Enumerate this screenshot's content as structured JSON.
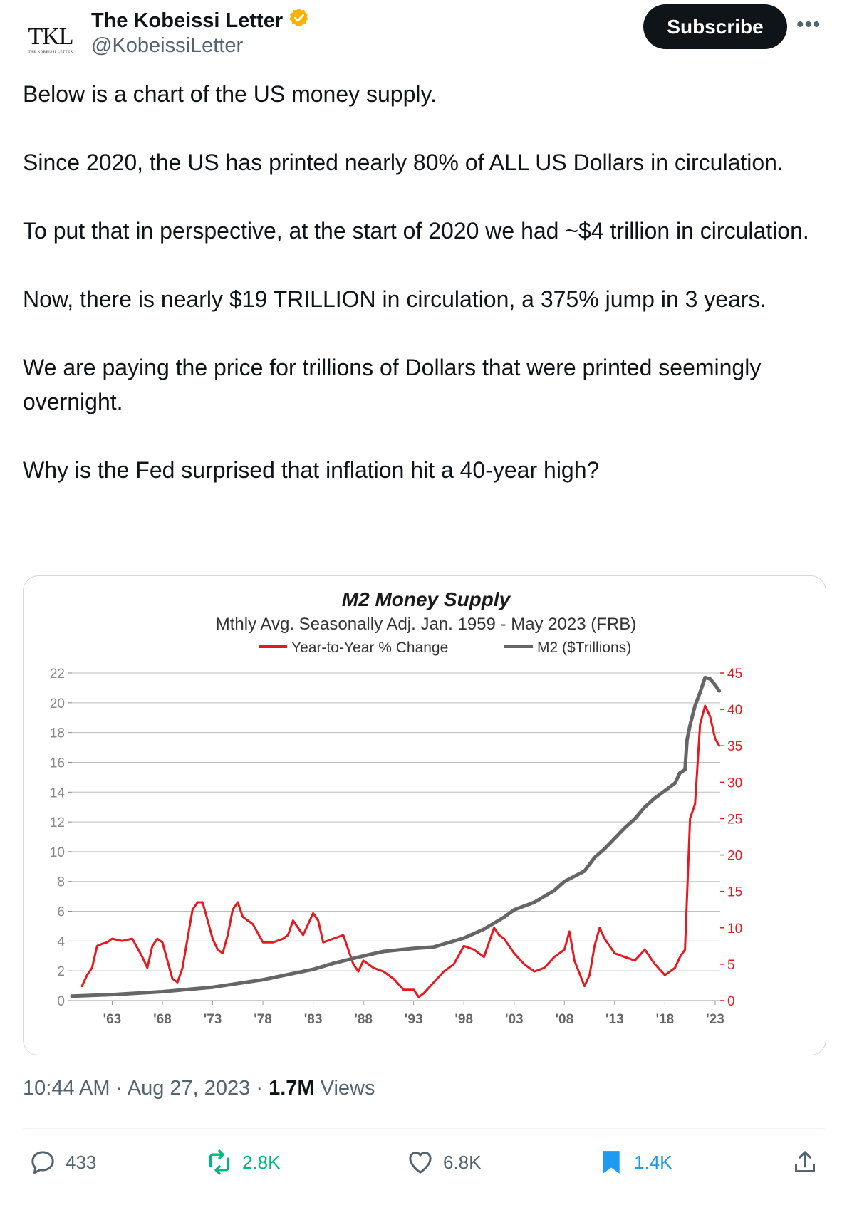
{
  "author": {
    "name": "The Kobeissi Letter",
    "handle": "@KobeissiLetter",
    "avatar_text": "TKL",
    "avatar_subtext": "THE KOBEISSI LETTER",
    "verified_icon": "verified-gold-badge-icon"
  },
  "subscribe_label": "Subscribe",
  "more_icon": "more-horizontal-icon",
  "text": {
    "p1": "Below is a chart of the US money supply.",
    "p2": "Since 2020, the US has printed nearly 80% of ALL US Dollars in circulation.",
    "p3": "To put that in perspective, at the start of 2020 we had ~$4 trillion in circulation.",
    "p4": "Now, there is nearly $19 TRILLION in circulation, a 375% jump in 3 years.",
    "p5": "We are paying the price for trillions of Dollars that were printed seemingly overnight.",
    "p6": "Why is the Fed surprised that inflation hit a 40-year high?"
  },
  "chart_data": {
    "type": "line",
    "title": "M2 Money Supply",
    "subtitle": "Mthly Avg. Seasonally Adj. Jan. 1959 - May 2023  (FRB)",
    "legend_placement": "top-center",
    "grid": true,
    "x_ticks": [
      "'63",
      "'68",
      "'73",
      "'78",
      "'83",
      "'88",
      "'93",
      "'98",
      "'03",
      "'08",
      "'13",
      "'18",
      "'23"
    ],
    "xlim": [
      1959,
      2023.5
    ],
    "y_left": {
      "ticks": [
        0,
        2,
        4,
        6,
        8,
        10,
        12,
        14,
        16,
        18,
        20,
        22
      ],
      "ylim": [
        0,
        22
      ]
    },
    "y_right": {
      "ticks": [
        0,
        5,
        10,
        15,
        20,
        25,
        30,
        35,
        40,
        45
      ],
      "ylim": [
        0,
        45
      ]
    },
    "series": [
      {
        "name": "Year-to-Year % Change",
        "color": "#e8191e",
        "axis": "right",
        "x": [
          1960.0,
          1960.5,
          1961.0,
          1961.5,
          1962.0,
          1962.5,
          1963.0,
          1964.0,
          1965.0,
          1966.0,
          1966.5,
          1967.0,
          1967.5,
          1968.0,
          1969.0,
          1969.5,
          1970.0,
          1970.5,
          1971.0,
          1971.5,
          1972.0,
          1972.5,
          1973.0,
          1973.5,
          1974.0,
          1974.5,
          1975.0,
          1975.5,
          1976.0,
          1977.0,
          1978.0,
          1979.0,
          1980.0,
          1980.5,
          1981.0,
          1982.0,
          1983.0,
          1983.5,
          1984.0,
          1985.0,
          1986.0,
          1987.0,
          1987.5,
          1988.0,
          1989.0,
          1990.0,
          1991.0,
          1992.0,
          1993.0,
          1993.5,
          1994.0,
          1995.0,
          1996.0,
          1997.0,
          1998.0,
          1999.0,
          2000.0,
          2001.0,
          2001.5,
          2002.0,
          2003.0,
          2004.0,
          2005.0,
          2006.0,
          2007.0,
          2008.0,
          2008.5,
          2009.0,
          2010.0,
          2010.5,
          2011.0,
          2011.5,
          2012.0,
          2013.0,
          2014.0,
          2015.0,
          2016.0,
          2017.0,
          2018.0,
          2019.0,
          2019.5,
          2020.0,
          2020.3,
          2020.5,
          2021.0,
          2021.5,
          2022.0,
          2022.5,
          2023.0,
          2023.4
        ],
        "y": [
          2.0,
          3.5,
          4.5,
          7.5,
          7.8,
          8.0,
          8.5,
          8.2,
          8.5,
          6.0,
          4.5,
          7.5,
          8.5,
          8.0,
          3.0,
          2.5,
          4.5,
          8.5,
          12.5,
          13.5,
          13.5,
          11.0,
          8.5,
          7.0,
          6.5,
          9.0,
          12.5,
          13.5,
          11.5,
          10.5,
          8.0,
          8.0,
          8.5,
          9.0,
          11.0,
          9.0,
          12.0,
          11.0,
          8.0,
          8.5,
          9.0,
          5.0,
          4.0,
          5.5,
          4.5,
          4.0,
          3.0,
          1.5,
          1.5,
          0.5,
          1.0,
          2.5,
          4.0,
          5.0,
          7.5,
          7.0,
          6.0,
          10.0,
          9.0,
          8.5,
          6.5,
          5.0,
          4.0,
          4.5,
          6.0,
          7.0,
          9.5,
          5.5,
          2.0,
          3.5,
          7.5,
          10.0,
          8.5,
          6.5,
          6.0,
          5.5,
          7.0,
          5.0,
          3.5,
          4.5,
          6.0,
          7.0,
          18.0,
          25.0,
          27.0,
          38.0,
          40.5,
          39.0,
          36.0,
          35.0
        ]
      },
      {
        "name": "M2 ($Trillions)",
        "color": "#666666",
        "axis": "left",
        "x": [
          1959.0,
          1963.0,
          1968.0,
          1973.0,
          1978.0,
          1983.0,
          1985.0,
          1988.0,
          1990.0,
          1993.0,
          1995.0,
          1998.0,
          2000.0,
          2002.0,
          2003.0,
          2005.0,
          2007.0,
          2008.0,
          2010.0,
          2011.0,
          2012.0,
          2013.0,
          2014.0,
          2015.0,
          2016.0,
          2017.0,
          2018.0,
          2019.0,
          2019.5,
          2020.0,
          2020.2,
          2020.5,
          2021.0,
          2021.5,
          2022.0,
          2022.5,
          2023.0,
          2023.4
        ],
        "y": [
          0.3,
          0.4,
          0.6,
          0.9,
          1.4,
          2.1,
          2.5,
          3.0,
          3.3,
          3.5,
          3.6,
          4.2,
          4.8,
          5.6,
          6.1,
          6.6,
          7.4,
          8.0,
          8.7,
          9.6,
          10.2,
          10.9,
          11.6,
          12.2,
          13.0,
          13.6,
          14.1,
          14.6,
          15.3,
          15.5,
          17.5,
          18.5,
          19.8,
          20.7,
          21.7,
          21.6,
          21.2,
          20.8
        ]
      }
    ]
  },
  "meta": {
    "time": "10:44 AM",
    "date": "Aug 27, 2023",
    "separator": "·",
    "views_count": "1.7M",
    "views_label": "Views"
  },
  "actions": {
    "reply": {
      "icon": "reply-icon",
      "count": "433"
    },
    "repost": {
      "icon": "repost-icon",
      "count": "2.8K",
      "color": "#00ba7c"
    },
    "like": {
      "icon": "heart-icon",
      "count": "6.8K"
    },
    "bookmark": {
      "icon": "bookmark-icon",
      "count": "1.4K",
      "color": "#1d9bf0"
    },
    "share": {
      "icon": "share-icon"
    }
  }
}
